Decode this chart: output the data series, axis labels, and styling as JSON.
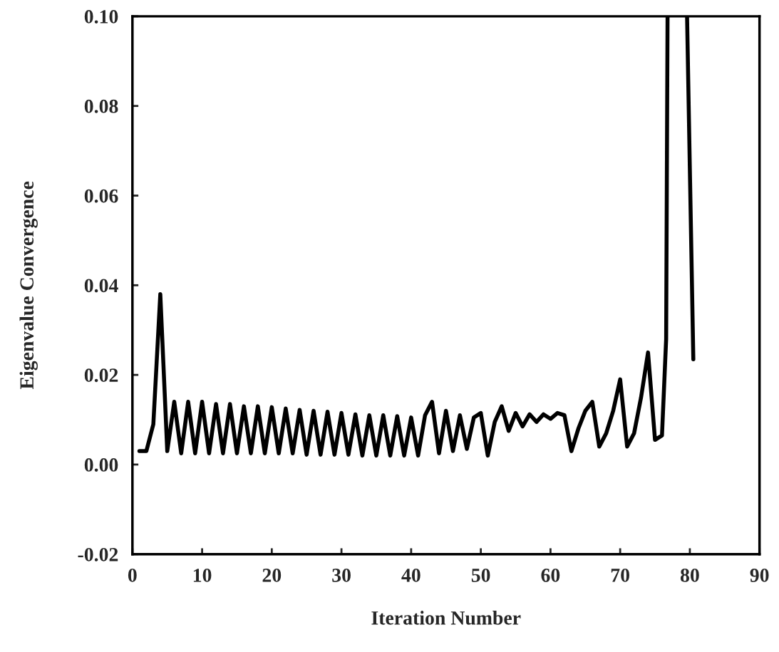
{
  "chart_data": {
    "type": "line",
    "xlabel": "Iteration Number",
    "ylabel": "Eigenvalue Convergence",
    "xlim": [
      0,
      90
    ],
    "ylim": [
      -0.02,
      0.1
    ],
    "xticks": [
      0,
      10,
      20,
      30,
      40,
      50,
      60,
      70,
      80,
      90
    ],
    "yticks": [
      {
        "value": -0.02,
        "label": "-0.02"
      },
      {
        "value": 0,
        "label": "0.00"
      },
      {
        "value": 0.02,
        "label": "0.02"
      },
      {
        "value": 0.04,
        "label": "0.04"
      },
      {
        "value": 0.06,
        "label": "0.06"
      },
      {
        "value": 0.08,
        "label": "0.08"
      },
      {
        "value": 0.1,
        "label": "0.10"
      }
    ],
    "grid": false,
    "marker": "none",
    "line_style": "solid",
    "series": [
      {
        "color": "#000000",
        "x": [
          1,
          2,
          3,
          4,
          5,
          6,
          7,
          8,
          9,
          10,
          11,
          12,
          13,
          14,
          15,
          16,
          17,
          18,
          19,
          20,
          21,
          22,
          23,
          24,
          25,
          26,
          27,
          28,
          29,
          30,
          31,
          32,
          33,
          34,
          35,
          36,
          37,
          38,
          39,
          40,
          41,
          42,
          43,
          44,
          45,
          46,
          47,
          48,
          49,
          50,
          51,
          52,
          53,
          54,
          55,
          56,
          57,
          58,
          59,
          60,
          61,
          62,
          63,
          64,
          65,
          66,
          67,
          68,
          69,
          70,
          71,
          72,
          73,
          74,
          75,
          76,
          76.6,
          76.8,
          78,
          79.6,
          80.5
        ],
        "values": [
          0.003,
          0.003,
          0.009,
          0.038,
          0.003,
          0.014,
          0.0025,
          0.014,
          0.0025,
          0.014,
          0.0025,
          0.0135,
          0.0025,
          0.0135,
          0.0025,
          0.013,
          0.0025,
          0.013,
          0.0025,
          0.0128,
          0.0025,
          0.0125,
          0.0025,
          0.0122,
          0.0022,
          0.012,
          0.0022,
          0.0118,
          0.0022,
          0.0115,
          0.0022,
          0.0112,
          0.002,
          0.011,
          0.002,
          0.011,
          0.002,
          0.0108,
          0.002,
          0.0105,
          0.002,
          0.011,
          0.014,
          0.0025,
          0.012,
          0.003,
          0.011,
          0.0035,
          0.0105,
          0.0115,
          0.002,
          0.0095,
          0.013,
          0.0075,
          0.0115,
          0.0085,
          0.0112,
          0.0095,
          0.0112,
          0.0102,
          0.0115,
          0.011,
          0.003,
          0.008,
          0.012,
          0.014,
          0.004,
          0.007,
          0.012,
          0.019,
          0.004,
          0.007,
          0.015,
          0.025,
          0.0055,
          0.0065,
          0.028,
          0.1,
          null,
          0.1,
          0.0235
        ]
      }
    ]
  }
}
